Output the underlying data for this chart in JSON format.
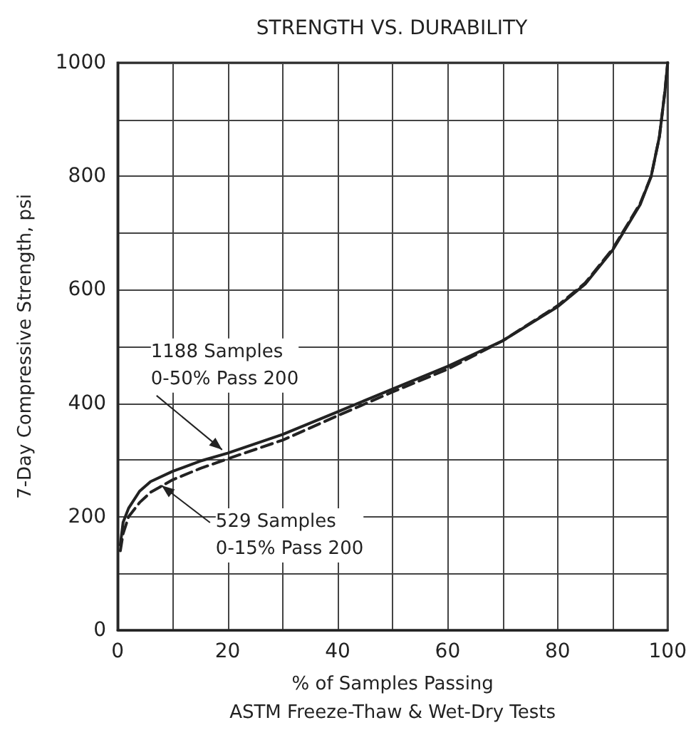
{
  "chart_data": {
    "type": "line",
    "title": "STRENGTH VS. DURABILITY",
    "xlabel": "% of Samples Passing\nASTM Freeze-Thaw & Wet-Dry Tests",
    "ylabel": "7-Day Compressive Strength, psi",
    "series": [
      {
        "color": "#222222",
        "line_style": "solid",
        "x": [
          0.5,
          1,
          2,
          4,
          6,
          10,
          15,
          20,
          30,
          40,
          50,
          60,
          70,
          80,
          85,
          90,
          95,
          97,
          98.5,
          99.5,
          100
        ],
        "values": [
          150,
          190,
          215,
          245,
          262,
          280,
          298,
          312,
          345,
          385,
          425,
          465,
          510,
          570,
          610,
          670,
          750,
          800,
          870,
          950,
          1000
        ]
      },
      {
        "color": "#222222",
        "line_style": "dashed",
        "x": [
          0.5,
          1,
          2,
          4,
          6,
          10,
          15,
          20,
          30,
          40,
          50,
          60,
          70,
          80,
          85,
          90,
          95,
          97,
          98.5,
          99.5,
          100
        ],
        "values": [
          140,
          170,
          200,
          225,
          243,
          265,
          285,
          302,
          335,
          378,
          420,
          460,
          510,
          572,
          612,
          672,
          752,
          800,
          870,
          950,
          1000
        ]
      }
    ],
    "annotations": [
      {
        "text": "1188 Samples\n0-50% Pass 200",
        "x": 19,
        "y": 318
      },
      {
        "text": "529 Samples\n0-15% Pass 200",
        "x": 8,
        "y": 255
      }
    ],
    "xlim": [
      0,
      100
    ],
    "xticks": [
      0,
      20,
      40,
      60,
      80,
      100
    ],
    "ylim": [
      0,
      1000
    ],
    "yticks": [
      0,
      200,
      400,
      600,
      800,
      1000
    ],
    "grid": true,
    "marker": "none"
  }
}
